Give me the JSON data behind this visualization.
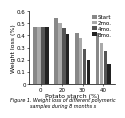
{
  "categories": [
    0,
    20,
    30,
    40
  ],
  "series_labels": [
    "Start",
    "2mo.",
    "4mo.",
    "8mo."
  ],
  "values": [
    [
      0.47,
      0.54,
      0.42,
      0.42
    ],
    [
      0.47,
      0.5,
      0.38,
      0.34
    ],
    [
      0.47,
      0.46,
      0.29,
      0.27
    ],
    [
      0.47,
      0.41,
      0.2,
      0.16
    ]
  ],
  "bar_colors": [
    "#888888",
    "#aaaaaa",
    "#555555",
    "#222222"
  ],
  "xlabel": "Potato starch (%)",
  "ylabel": "Weight loss (%)",
  "ylim": [
    0,
    0.6
  ],
  "yticks": [
    0,
    0.1,
    0.2,
    0.3,
    0.4,
    0.5,
    0.6
  ],
  "caption": "Figure 1. Weight loss of different polymeric samples during 8 months s",
  "legend_fontsize": 4.0,
  "axis_fontsize": 4.5,
  "tick_fontsize": 4.0,
  "caption_fontsize": 3.5
}
